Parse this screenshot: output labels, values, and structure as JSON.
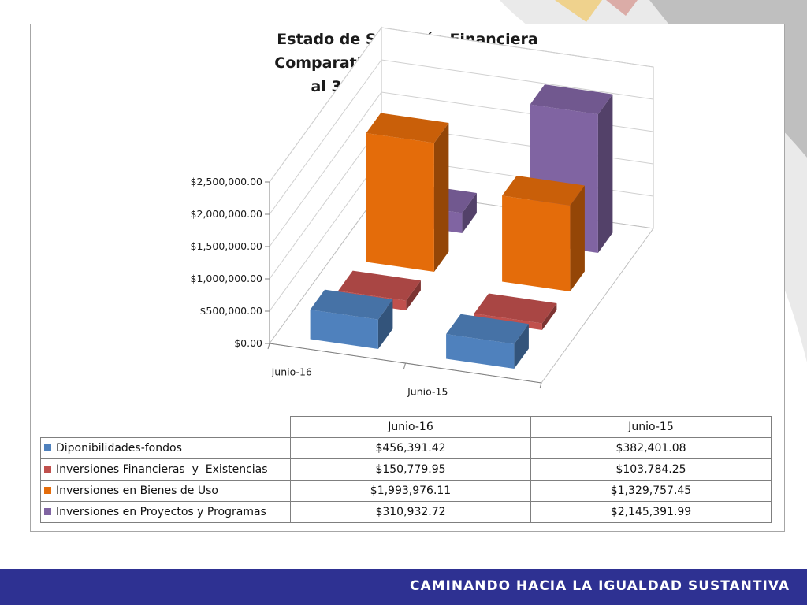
{
  "footer": {
    "slogan": "CAMINANDO HACIA LA IGUALDAD SUSTANTIVA"
  },
  "colors": {
    "footer_bar": "#2e3192"
  },
  "chart_data": {
    "type": "bar",
    "title_lines": [
      "Estado de Situación Financiera",
      "Comparativo Recursos (En Us$)",
      "al 30 de Junio del 2016"
    ],
    "categories": [
      "Junio-16",
      "Junio-15"
    ],
    "ylim": [
      0,
      2500000
    ],
    "yticks": [
      0,
      500000,
      1000000,
      1500000,
      2000000,
      2500000
    ],
    "ytick_labels": [
      "$0.00",
      "$500,000.00",
      "$1,000,000.00",
      "$1,500,000.00",
      "$2,000,000.00",
      "$2,500,000.00"
    ],
    "grid": true,
    "legend_placement": "table below chart",
    "series": [
      {
        "name": "Diponibilidades-fondos",
        "color": "#4f81bd",
        "values": [
          456391.42,
          382401.08
        ],
        "labels": [
          "$456,391.42",
          "$382,401.08"
        ]
      },
      {
        "name": "Inversiones Financieras  y  Existencias",
        "color": "#c0504d",
        "values": [
          150779.95,
          103784.25
        ],
        "labels": [
          "$150,779.95",
          "$103,784.25"
        ]
      },
      {
        "name": "Inversiones en Bienes de Uso",
        "color": "#e46c0a",
        "values": [
          1993976.11,
          1329757.45
        ],
        "labels": [
          "$1,993,976.11",
          "$1,329,757.45"
        ]
      },
      {
        "name": "Inversiones en Proyectos y Programas",
        "color": "#8064a2",
        "values": [
          310932.72,
          2145391.99
        ],
        "labels": [
          "$310,932.72",
          "$2,145,391.99"
        ]
      }
    ]
  }
}
